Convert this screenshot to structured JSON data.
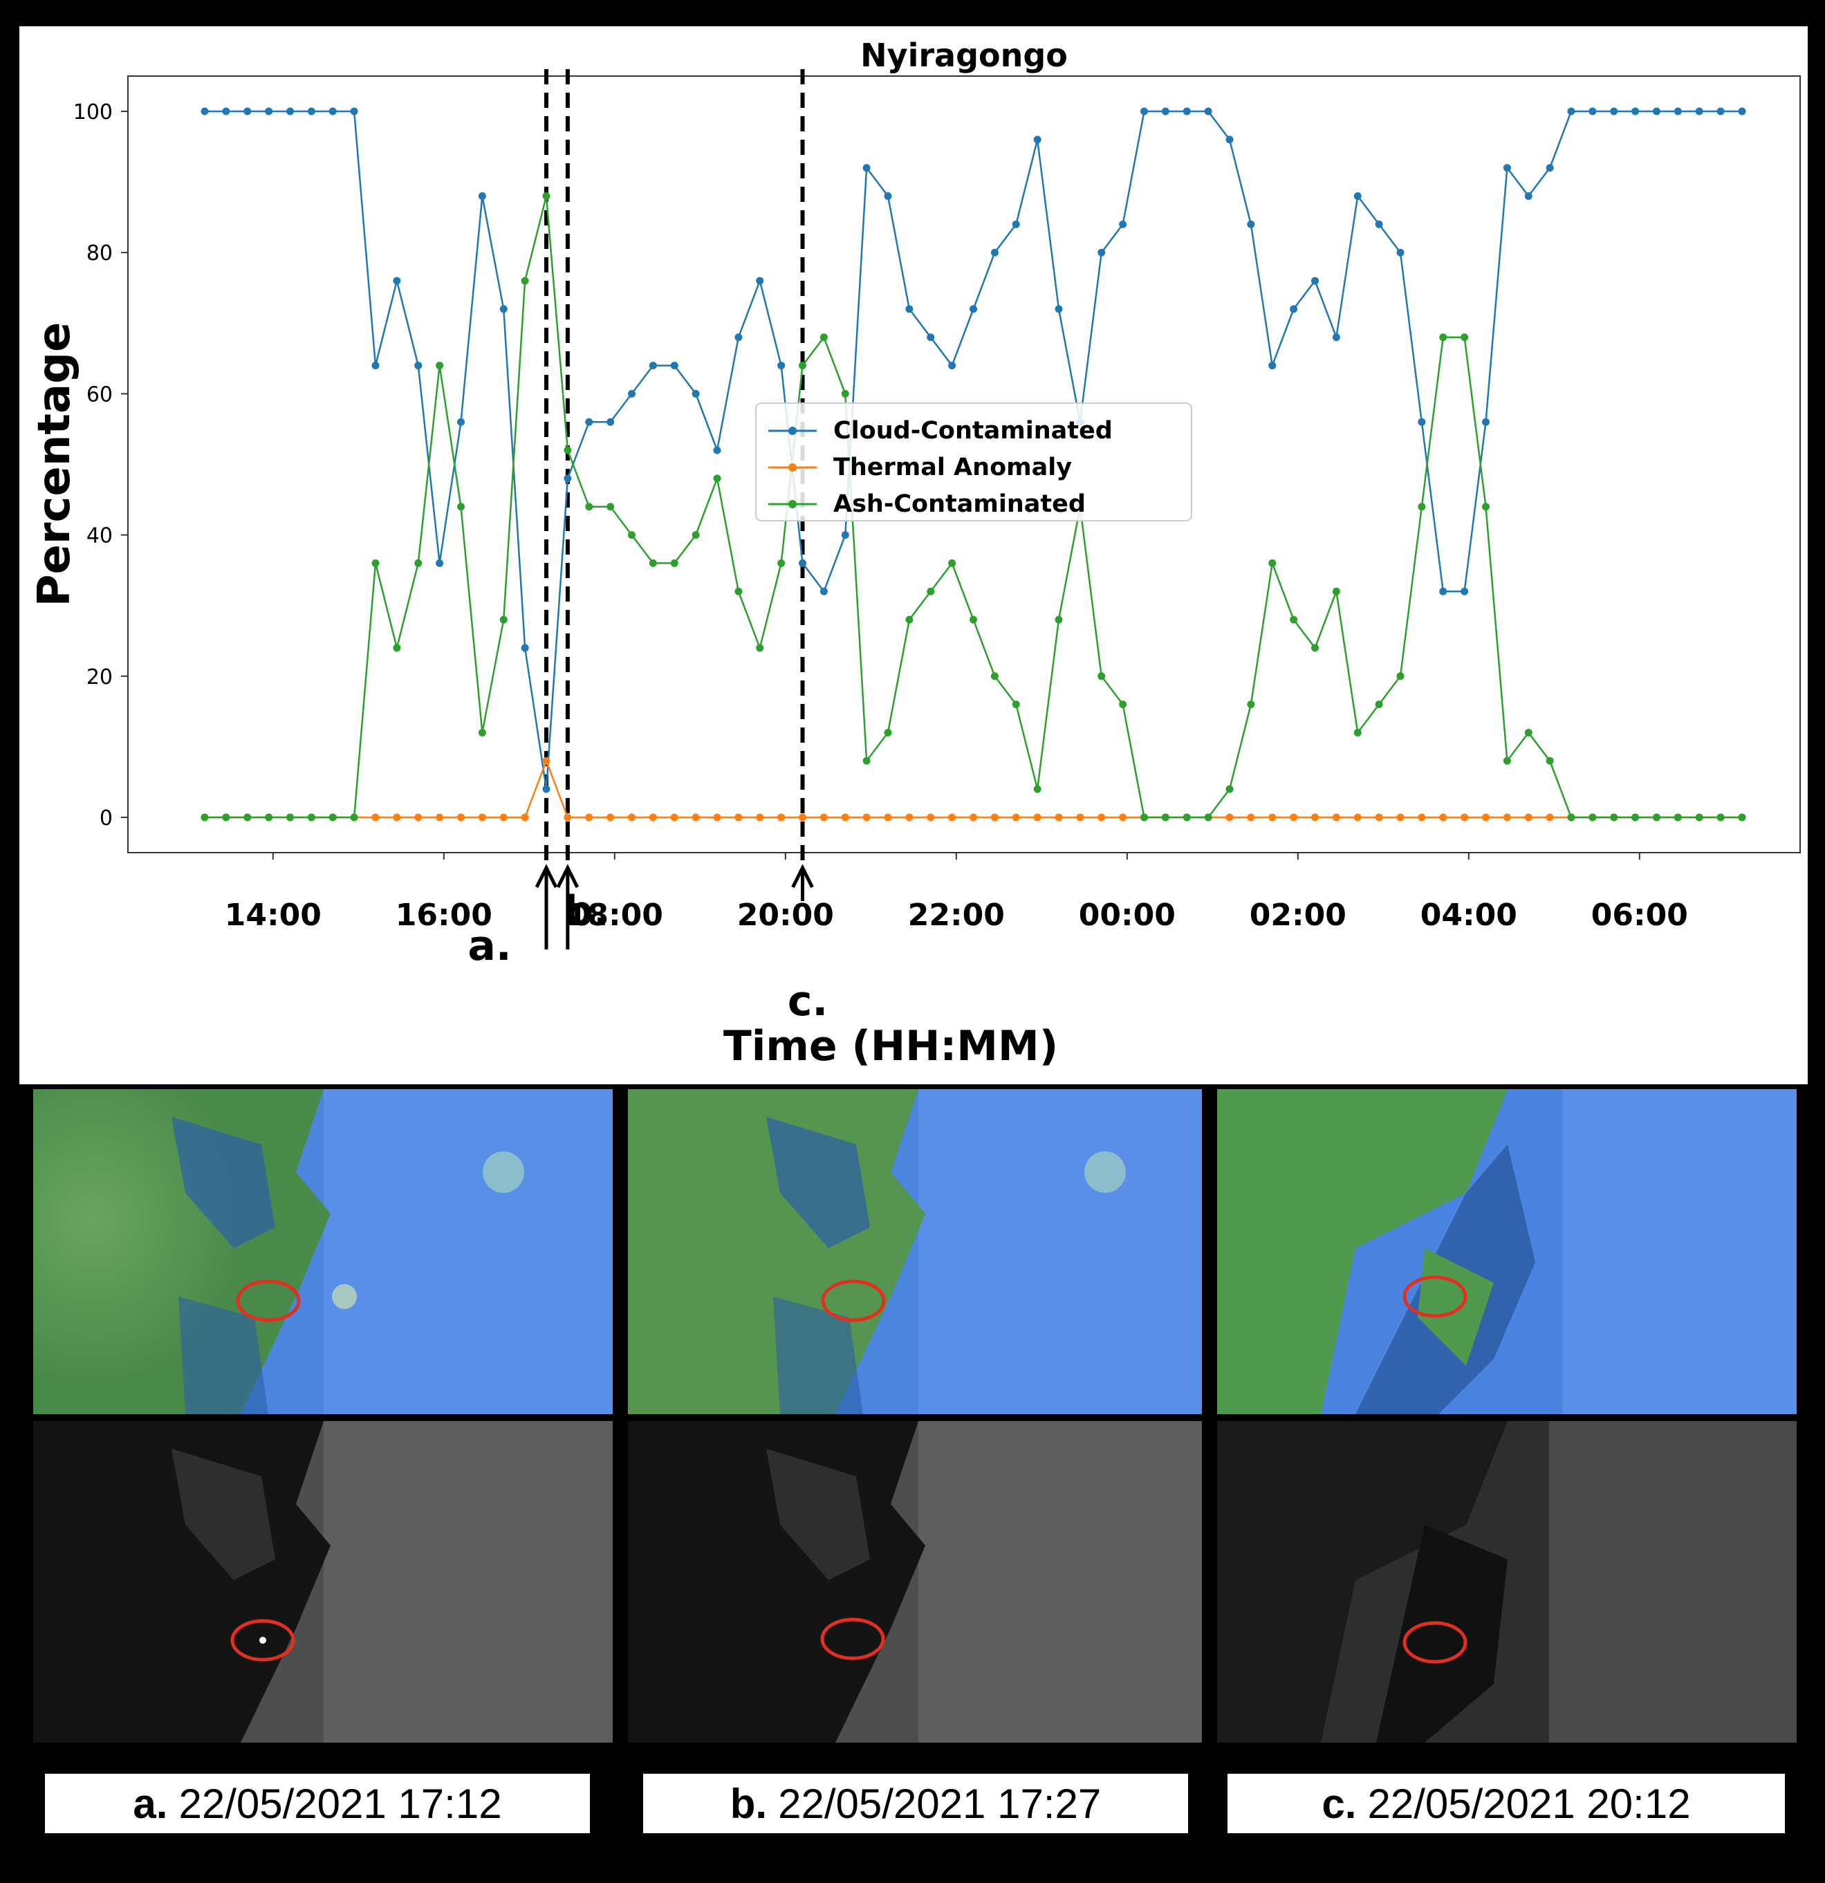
{
  "chart_data": {
    "type": "line",
    "title": "Nyiragongo",
    "xlabel": "Time (HH:MM)",
    "ylabel": "Percentage",
    "ylim": [
      -5,
      105
    ],
    "yticks": [
      0,
      20,
      40,
      60,
      80,
      100
    ],
    "xticks": [
      "14:00",
      "16:00",
      "18:00",
      "20:00",
      "22:00",
      "00:00",
      "02:00",
      "04:00",
      "06:00"
    ],
    "x_start": "13:12",
    "x_step_minutes": 15,
    "grid": true,
    "legend_position": "center",
    "series": [
      {
        "name": "Cloud-Contaminated",
        "color": "#1f77b4",
        "values": [
          100,
          100,
          100,
          100,
          100,
          100,
          100,
          100,
          64,
          76,
          64,
          36,
          56,
          88,
          72,
          24,
          4,
          48,
          56,
          56,
          60,
          64,
          64,
          60,
          52,
          68,
          76,
          64,
          36,
          32,
          40,
          92,
          88,
          72,
          68,
          64,
          72,
          80,
          84,
          96,
          72,
          56,
          80,
          84,
          100,
          100,
          100,
          100,
          96,
          84,
          64,
          72,
          76,
          68,
          88,
          84,
          80,
          56,
          32,
          32,
          56,
          92,
          88,
          92,
          100,
          100,
          100,
          100,
          100,
          100,
          100,
          100,
          100
        ]
      },
      {
        "name": "Thermal Anomaly",
        "color": "#ff7f0e",
        "values": [
          0,
          0,
          0,
          0,
          0,
          0,
          0,
          0,
          0,
          0,
          0,
          0,
          0,
          0,
          0,
          0,
          8,
          0,
          0,
          0,
          0,
          0,
          0,
          0,
          0,
          0,
          0,
          0,
          0,
          0,
          0,
          0,
          0,
          0,
          0,
          0,
          0,
          0,
          0,
          0,
          0,
          0,
          0,
          0,
          0,
          0,
          0,
          0,
          0,
          0,
          0,
          0,
          0,
          0,
          0,
          0,
          0,
          0,
          0,
          0,
          0,
          0,
          0,
          0,
          0,
          0,
          0,
          0,
          0,
          0,
          0,
          0,
          0
        ]
      },
      {
        "name": "Ash-Contaminated",
        "color": "#2ca02c",
        "values": [
          0,
          0,
          0,
          0,
          0,
          0,
          0,
          0,
          36,
          24,
          36,
          64,
          44,
          12,
          28,
          76,
          88,
          52,
          44,
          44,
          40,
          36,
          36,
          40,
          48,
          32,
          24,
          36,
          64,
          68,
          60,
          8,
          12,
          28,
          32,
          36,
          28,
          20,
          16,
          4,
          28,
          44,
          20,
          16,
          0,
          0,
          0,
          0,
          4,
          16,
          36,
          28,
          24,
          32,
          12,
          16,
          20,
          44,
          68,
          68,
          44,
          8,
          12,
          8,
          0,
          0,
          0,
          0,
          0,
          0,
          0,
          0,
          0
        ]
      }
    ],
    "markers": [
      {
        "label": "a.",
        "time": "17:12"
      },
      {
        "label": "b.",
        "time": "17:27"
      },
      {
        "label": "c.",
        "time": "20:12"
      }
    ]
  },
  "captions": [
    {
      "letter": "a.",
      "text": "22/05/2021 17:12"
    },
    {
      "letter": "b.",
      "text": "22/05/2021 17:27"
    },
    {
      "letter": "c.",
      "text": "22/05/2021 20:12"
    }
  ],
  "colors": {
    "ash_green": "#4f9a4f",
    "cloud_blue": "#3f7fe0",
    "marker_red": "#e03020"
  }
}
